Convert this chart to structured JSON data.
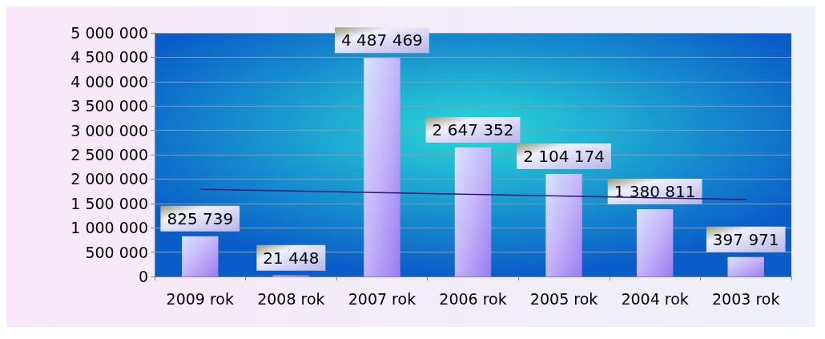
{
  "chart_data": {
    "type": "bar",
    "categories": [
      "2009 rok",
      "2008 rok",
      "2007 rok",
      "2006 rok",
      "2005 rok",
      "2004 rok",
      "2003 rok"
    ],
    "series": [
      {
        "color": "#c4b4f8",
        "values": [
          825739,
          21448,
          4487469,
          2647352,
          2104174,
          1380811,
          397971
        ],
        "value_labels": [
          "825 739",
          "21 448",
          "4 487 469",
          "2 647 352",
          "2 104 174",
          "1 380 811",
          "397 971"
        ]
      },
      {
        "type": "line",
        "color": "#2a1a6e",
        "x": [
          "2009 rok",
          "2003 rok"
        ],
        "values": [
          1790000,
          1580000
        ]
      }
    ],
    "ylim": [
      0,
      5000000
    ],
    "yticks": [
      {
        "value": 0,
        "label": "0"
      },
      {
        "value": 500000,
        "label": "500 000"
      },
      {
        "value": 1000000,
        "label": "1 000 000"
      },
      {
        "value": 1500000,
        "label": "1 500 000"
      },
      {
        "value": 2000000,
        "label": "2 000 000"
      },
      {
        "value": 2500000,
        "label": "2 500 000"
      },
      {
        "value": 3000000,
        "label": "3 000 000"
      },
      {
        "value": 3500000,
        "label": "3 500 000"
      },
      {
        "value": 4000000,
        "label": "4 000 000"
      },
      {
        "value": 4500000,
        "label": "4 500 000"
      },
      {
        "value": 5000000,
        "label": "5 000 000"
      }
    ],
    "grid": "y"
  }
}
